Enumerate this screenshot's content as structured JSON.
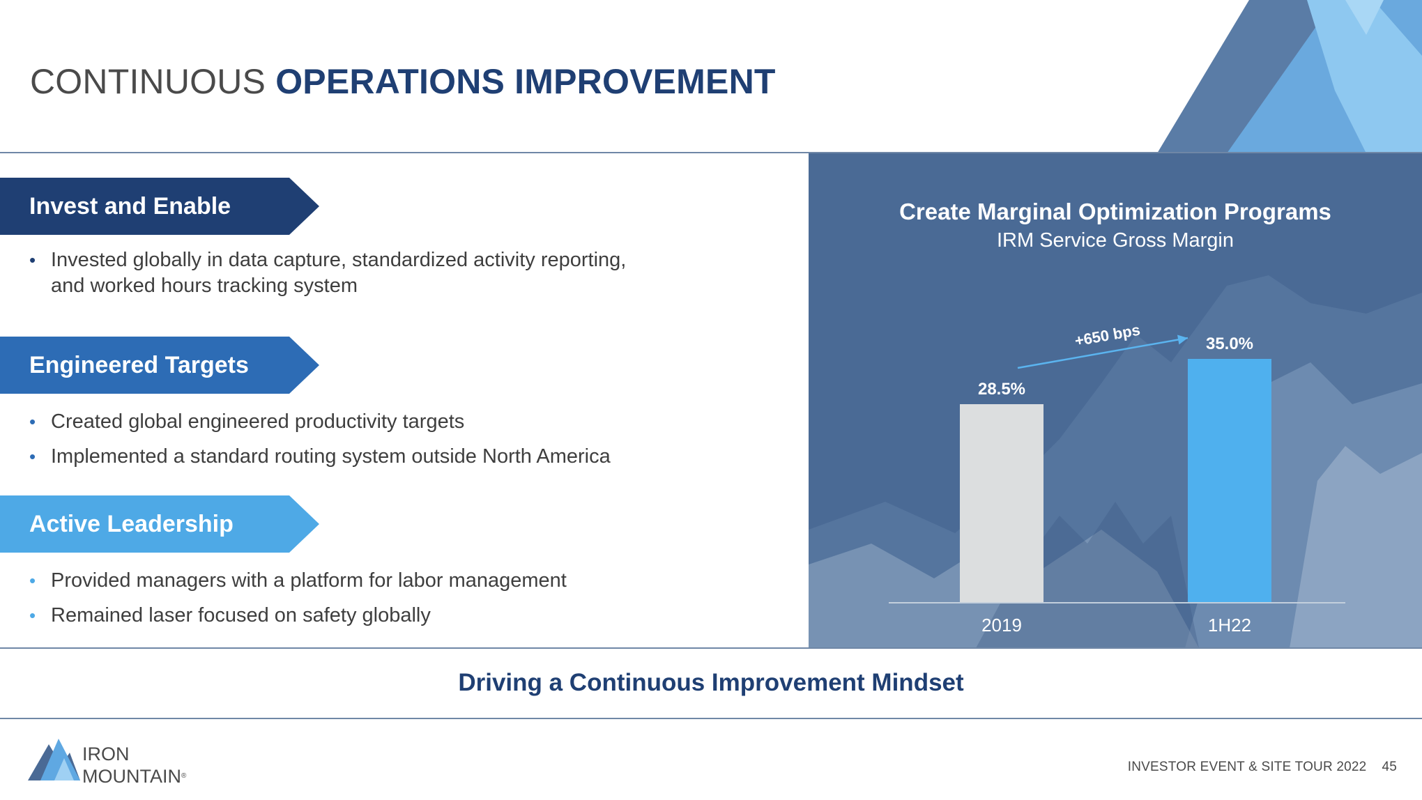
{
  "title": {
    "part1": "CONTINUOUS ",
    "part2": "OPERATIONS IMPROVEMENT"
  },
  "colors": {
    "navy": "#1f3f73",
    "mid_blue": "#2d6cb5",
    "light_blue": "#4ea9e6",
    "bar_2019": "#dcdedf",
    "bar_1h22": "#4fb0ee",
    "arrow": "#5bb4ef",
    "panel": "#4a6a95"
  },
  "sections": [
    {
      "heading": "Invest and Enable",
      "color": "#1f3f73",
      "bullets": [
        "Invested globally in data capture, standardized activity reporting, and worked hours tracking system"
      ]
    },
    {
      "heading": "Engineered Targets",
      "color": "#2d6cb5",
      "bullets": [
        "Created global engineered productivity targets",
        "Implemented a standard routing system outside North America"
      ]
    },
    {
      "heading": "Active Leadership",
      "color": "#4ea9e6",
      "bullets": [
        "Provided managers with a platform for labor management",
        "Remained laser focused on safety globally"
      ]
    }
  ],
  "chart_data": {
    "type": "bar",
    "title": "Create Marginal Optimization Programs",
    "subtitle": "IRM Service Gross Margin",
    "categories": [
      "2019",
      "1H22"
    ],
    "values": [
      28.5,
      35.0
    ],
    "value_labels": [
      "28.5%",
      "35.0%"
    ],
    "bar_colors": [
      "#dcdedf",
      "#4fb0ee"
    ],
    "ylim": [
      0,
      40
    ],
    "grid": false,
    "annotation": "+650 bps"
  },
  "mindset": "Driving a Continuous Improvement Mindset",
  "logo": {
    "line1": "IRON",
    "line2": "MOUNTAIN",
    "reg": "®"
  },
  "footer": {
    "event": "INVESTOR EVENT & SITE TOUR 2022",
    "page": "45"
  }
}
